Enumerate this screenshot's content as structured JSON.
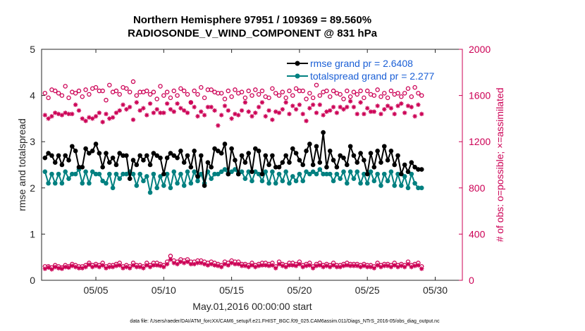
{
  "chart_data": {
    "type": "line",
    "title_line1": "Northern Hemisphere 97951 / 109369 = 89.560%",
    "title_line2": "RADIOSONDE_V_WIND_COMPONENT @ 831 hPa",
    "xlabel": "May.01,2016 00:00:00 start",
    "ylabel_left": "rmse and totalspread",
    "ylabel_right": "# of obs: o=possible; ×=assimilated",
    "xlim": [
      1,
      32
    ],
    "ylim_left": [
      0,
      5
    ],
    "ylim_right": [
      0,
      2000
    ],
    "x_ticks": [
      5,
      10,
      15,
      20,
      25,
      30
    ],
    "x_tick_labels": [
      "05/05",
      "05/10",
      "05/15",
      "05/20",
      "05/25",
      "05/30"
    ],
    "y_ticks_left": [
      0,
      1,
      2,
      3,
      4,
      5
    ],
    "y_tick_labels_left": [
      "0",
      "1",
      "2",
      "3",
      "4",
      "5"
    ],
    "y_ticks_right": [
      0,
      400,
      800,
      1200,
      1600,
      2000
    ],
    "y_tick_labels_right": [
      "0",
      "400",
      "800",
      "1200",
      "1600",
      "2000"
    ],
    "legend": [
      "rmse grand pr = 2.6408",
      "totalspread grand pr = 2.277"
    ],
    "footnote": "data file: /Users/raeder/DAI/ATM_forcXX/CAM6_setup/f.e21.FHIST_BGC.f09_025.CAM6assim.011/Diags_NTrS_2016-05/obs_diag_output.nc",
    "x_start": 1.25,
    "x_step": 0.25,
    "series": [
      {
        "name": "rmse",
        "axis": "left",
        "color": "#000000",
        "values": [
          2.65,
          2.75,
          2.7,
          2.55,
          2.7,
          2.5,
          2.7,
          2.6,
          2.9,
          2.8,
          2.45,
          2.45,
          2.85,
          2.75,
          2.8,
          2.95,
          2.75,
          2.45,
          2.75,
          2.55,
          2.65,
          2.5,
          2.75,
          2.7,
          2.7,
          2.2,
          2.6,
          2.5,
          2.7,
          2.6,
          2.7,
          2.5,
          2.75,
          2.7,
          2.65,
          2.3,
          2.65,
          2.75,
          2.7,
          2.65,
          2.8,
          2.55,
          2.7,
          2.45,
          2.8,
          2.25,
          2.7,
          2.05,
          2.55,
          2.45,
          2.85,
          2.8,
          2.75,
          2.95,
          2.3,
          2.85,
          2.6,
          2.3,
          2.7,
          2.55,
          2.75,
          2.35,
          2.85,
          2.8,
          2.3,
          2.7,
          2.5,
          2.7,
          2.45,
          2.45,
          2.55,
          2.7,
          2.55,
          2.85,
          2.75,
          2.6,
          2.5,
          2.8,
          2.95,
          2.5,
          2.9,
          2.55,
          3.2,
          2.45,
          2.8,
          2.6,
          2.45,
          2.7,
          2.65,
          2.5,
          2.9,
          2.7,
          2.55,
          2.75,
          2.6,
          2.3,
          2.75,
          2.45,
          2.8,
          2.55,
          2.9,
          2.6,
          2.8,
          2.5,
          2.7,
          2.3,
          2.5,
          2.35,
          2.55,
          2.45,
          2.4,
          2.4
        ]
      },
      {
        "name": "totalspread",
        "axis": "left",
        "color": "#008080",
        "values": [
          2.35,
          2.1,
          2.3,
          2.1,
          2.3,
          2.1,
          2.35,
          2.2,
          2.3,
          2.3,
          2.4,
          2.1,
          2.35,
          2.1,
          2.35,
          2.3,
          2.3,
          2.15,
          2.1,
          2.3,
          2.0,
          2.3,
          2.2,
          2.3,
          2.3,
          2.35,
          2.3,
          2.05,
          2.3,
          2.15,
          2.25,
          1.9,
          2.3,
          2.0,
          2.25,
          2.05,
          2.3,
          2.0,
          2.35,
          2.1,
          2.3,
          2.05,
          2.35,
          2.1,
          2.35,
          2.15,
          2.3,
          2.1,
          2.35,
          2.2,
          2.3,
          2.3,
          2.35,
          2.4,
          2.3,
          2.35,
          2.4,
          2.3,
          2.35,
          2.2,
          2.35,
          2.15,
          2.35,
          2.3,
          2.15,
          2.35,
          2.1,
          2.35,
          2.1,
          2.3,
          2.15,
          2.35,
          2.1,
          2.25,
          2.15,
          2.3,
          2.15,
          2.35,
          2.3,
          2.35,
          2.3,
          2.4,
          2.3,
          2.3,
          2.3,
          2.15,
          2.3,
          2.2,
          2.35,
          2.1,
          2.35,
          2.2,
          2.35,
          2.1,
          2.3,
          2.1,
          2.35,
          2.15,
          2.3,
          2.05,
          2.3,
          2.15,
          2.35,
          2.05,
          2.3,
          2.05,
          2.25,
          2.0,
          2.3,
          2.1,
          2.0,
          2.0
        ]
      },
      {
        "name": "obs possible",
        "axis": "right",
        "color": "#cc0055",
        "marker": "circle",
        "values": [
          1620,
          1580,
          1650,
          1640,
          1620,
          1600,
          1680,
          1580,
          1630,
          1620,
          1640,
          1590,
          1650,
          1610,
          1660,
          1670,
          1640,
          1640,
          1560,
          1690,
          1630,
          1640,
          1610,
          1670,
          1660,
          1630,
          1720,
          1600,
          1630,
          1630,
          1640,
          1610,
          1630,
          1570,
          1680,
          1600,
          1630,
          1580,
          1640,
          1600,
          1660,
          1640,
          1610,
          1540,
          1640,
          1610,
          1670,
          1580,
          1650,
          1650,
          1630,
          1620,
          1620,
          1570,
          1640,
          1590,
          1650,
          1620,
          1630,
          1580,
          1640,
          1600,
          1650,
          1610,
          1640,
          1590,
          1580,
          1660,
          1620,
          1600,
          1630,
          1580,
          1640,
          1600,
          1660,
          1640,
          1640,
          1570,
          1620,
          1580,
          1690,
          1600,
          1630,
          1640,
          1590,
          1640,
          1620,
          1610,
          1570,
          1640,
          1590,
          1630,
          1610,
          1640,
          1580,
          1640,
          1610,
          1600,
          1650,
          1590,
          1620,
          1580,
          1640,
          1610,
          1620,
          1590,
          1620,
          1660,
          1590,
          1670,
          1620,
          1600
        ]
      },
      {
        "name": "obs assimilated",
        "axis": "right",
        "color": "#cc0055",
        "marker": "star",
        "values": [
          1430,
          1400,
          1420,
          1450,
          1440,
          1430,
          1450,
          1440,
          1440,
          1520,
          1470,
          1400,
          1380,
          1410,
          1400,
          1420,
          1450,
          1370,
          1440,
          1400,
          1410,
          1450,
          1470,
          1520,
          1480,
          1500,
          1390,
          1540,
          1470,
          1490,
          1430,
          1530,
          1450,
          1480,
          1450,
          1450,
          1530,
          1480,
          1460,
          1530,
          1490,
          1470,
          1450,
          1540,
          1500,
          1420,
          1460,
          1430,
          1500,
          1500,
          1470,
          1340,
          1430,
          1510,
          1470,
          1400,
          1440,
          1430,
          1470,
          1540,
          1460,
          1420,
          1450,
          1500,
          1540,
          1420,
          1470,
          1390,
          1460,
          1450,
          1480,
          1540,
          1440,
          1510,
          1480,
          1520,
          1440,
          1380,
          1490,
          1520,
          1450,
          1520,
          1430,
          1460,
          1470,
          1500,
          1450,
          1500,
          1480,
          1500,
          1550,
          1500,
          1440,
          1540,
          1440,
          1490,
          1460,
          1460,
          1510,
          1440,
          1480,
          1510,
          1490,
          1440,
          1510,
          1530,
          1450,
          1510,
          1500,
          1420,
          1520,
          1440
        ]
      },
      {
        "name": "obs possible (low)",
        "axis": "right",
        "color": "#cc0055",
        "marker": "circle",
        "values": [
          120,
          120,
          110,
          130,
          120,
          110,
          130,
          120,
          140,
          130,
          120,
          120,
          130,
          150,
          130,
          140,
          130,
          150,
          120,
          130,
          130,
          140,
          150,
          120,
          130,
          120,
          150,
          130,
          130,
          120,
          150,
          130,
          150,
          150,
          140,
          130,
          160,
          210,
          170,
          160,
          180,
          170,
          180,
          160,
          160,
          170,
          170,
          160,
          150,
          160,
          150,
          140,
          130,
          160,
          150,
          170,
          160,
          160,
          140,
          140,
          130,
          150,
          130,
          140,
          150,
          150,
          140,
          150,
          120,
          160,
          140,
          130,
          150,
          150,
          140,
          160,
          130,
          140,
          150,
          120,
          140,
          150,
          130,
          140,
          130,
          150,
          130,
          130,
          140,
          150,
          140,
          140,
          140,
          130,
          140,
          130,
          130,
          120,
          150,
          130,
          140,
          140,
          130,
          150,
          130,
          140,
          130,
          160,
          130,
          140,
          150,
          120
        ]
      },
      {
        "name": "obs assimilated (low)",
        "axis": "right",
        "color": "#cc0055",
        "marker": "star",
        "values": [
          100,
          110,
          95,
          115,
          105,
          100,
          115,
          110,
          125,
          115,
          105,
          105,
          115,
          135,
          115,
          125,
          115,
          130,
          105,
          115,
          115,
          125,
          130,
          105,
          115,
          105,
          130,
          115,
          115,
          105,
          130,
          115,
          130,
          130,
          125,
          115,
          140,
          180,
          150,
          140,
          160,
          150,
          160,
          140,
          140,
          150,
          150,
          140,
          130,
          140,
          130,
          125,
          115,
          140,
          130,
          150,
          140,
          140,
          125,
          125,
          115,
          130,
          115,
          125,
          130,
          130,
          125,
          130,
          105,
          140,
          125,
          115,
          130,
          130,
          125,
          140,
          115,
          125,
          130,
          105,
          125,
          130,
          115,
          125,
          115,
          130,
          115,
          115,
          125,
          130,
          125,
          125,
          125,
          115,
          125,
          115,
          115,
          105,
          130,
          115,
          125,
          125,
          115,
          130,
          115,
          125,
          115,
          140,
          115,
          125,
          130,
          100
        ]
      }
    ]
  }
}
